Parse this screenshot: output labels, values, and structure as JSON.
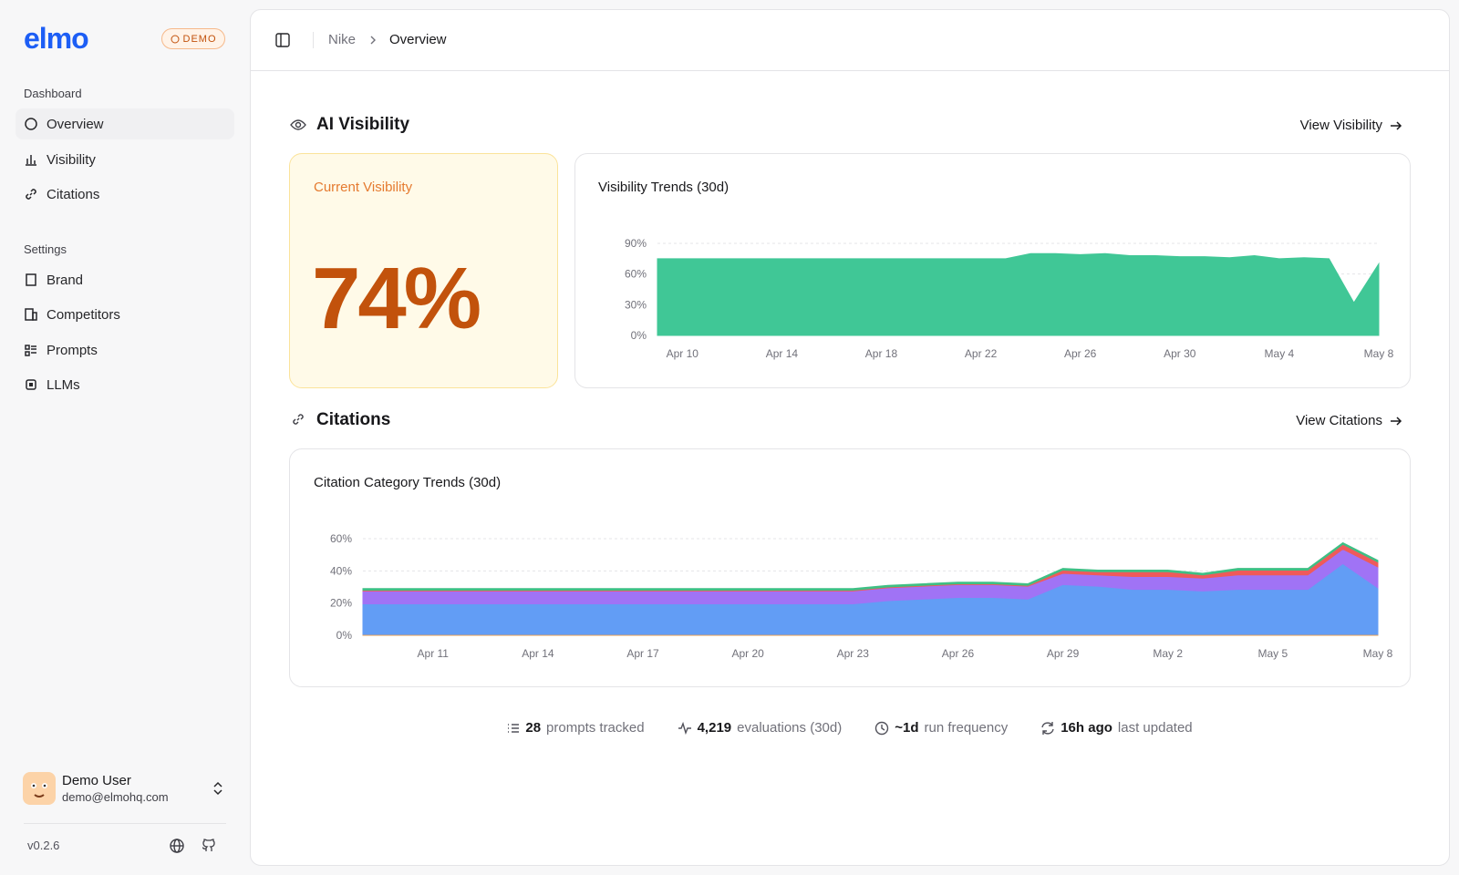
{
  "sidebar": {
    "logo": "elmo",
    "badge": "DEMO",
    "sections": [
      {
        "title": "Dashboard",
        "items": [
          "Overview",
          "Visibility",
          "Citations"
        ]
      },
      {
        "title": "Settings",
        "items": [
          "Brand",
          "Competitors",
          "Prompts",
          "LLMs"
        ]
      }
    ],
    "user": {
      "name": "Demo User",
      "email": "demo@elmohq.com"
    },
    "version": "v0.2.6"
  },
  "breadcrumb": [
    "Nike",
    "Overview"
  ],
  "visibility": {
    "heading": "AI Visibility",
    "link": "View Visibility",
    "current_label": "Current Visibility",
    "current_value": "74%"
  },
  "citations": {
    "heading": "Citations",
    "link": "View Citations"
  },
  "stats": [
    {
      "value": "28",
      "label": "prompts tracked"
    },
    {
      "value": "4,219",
      "label": "evaluations (30d)"
    },
    {
      "value": "~1d",
      "label": "run frequency"
    },
    {
      "value": "16h ago",
      "label": "last updated"
    }
  ],
  "chart_data": [
    {
      "type": "area",
      "title": "Visibility Trends (30d)",
      "categories": [
        null,
        "Apr 10",
        null,
        null,
        null,
        "Apr 14",
        null,
        null,
        null,
        "Apr 18",
        null,
        null,
        null,
        "Apr 22",
        null,
        null,
        null,
        "Apr 26",
        null,
        null,
        null,
        "Apr 30",
        null,
        null,
        null,
        "May 4",
        null,
        null,
        null,
        "May 8"
      ],
      "series": [
        {
          "color": "#40c796",
          "values": [
            75,
            75,
            75,
            75,
            75,
            75,
            75,
            75,
            75,
            75,
            75,
            75,
            75,
            75,
            75,
            80,
            80,
            79,
            80,
            78,
            78,
            77,
            77,
            76,
            78,
            75,
            76,
            75,
            32,
            70
          ]
        }
      ],
      "ylim": [
        0,
        90
      ],
      "yticks": [
        {
          "value": 0,
          "label": "0%"
        },
        {
          "value": 30,
          "label": "30%"
        },
        {
          "value": 60,
          "label": "60%"
        },
        {
          "value": 90,
          "label": "90%"
        }
      ],
      "grid": true
    },
    {
      "type": "stacked-area",
      "title": "Citation Category Trends (30d)",
      "categories": [
        null,
        null,
        "Apr 11",
        null,
        null,
        "Apr 14",
        null,
        null,
        "Apr 17",
        null,
        null,
        "Apr 20",
        null,
        null,
        "Apr 23",
        null,
        null,
        "Apr 26",
        null,
        null,
        "Apr 29",
        null,
        null,
        "May 2",
        null,
        null,
        "May 5",
        null,
        null,
        "May 8"
      ],
      "series": [
        {
          "color": "#f59e42",
          "values": [
            0.5,
            0.5,
            0.5,
            0.5,
            0.5,
            0.5,
            0.5,
            0.5,
            0.5,
            0.5,
            0.5,
            0.5,
            0.5,
            0.5,
            0.5,
            0.5,
            0.5,
            0.5,
            0.5,
            0.5,
            0.5,
            0.5,
            0.5,
            0.5,
            0.5,
            0.5,
            0.5,
            0.5,
            0.5,
            0.5
          ]
        },
        {
          "color": "#629df5",
          "values": [
            19,
            19,
            19,
            19,
            19,
            19,
            19,
            19,
            19,
            19,
            19,
            19,
            19,
            19,
            19,
            21,
            22,
            23,
            23,
            22,
            31,
            30,
            28,
            28,
            27,
            28,
            28,
            28,
            44,
            29
          ]
        },
        {
          "color": "#a073f5",
          "values": [
            8,
            8,
            8,
            8,
            8,
            8,
            8,
            8,
            8,
            8,
            8,
            8,
            8,
            8,
            8,
            8,
            8,
            8,
            8,
            8,
            7,
            7,
            8,
            8,
            8,
            9,
            9,
            9,
            9,
            13
          ]
        },
        {
          "color": "#ef5a5a",
          "values": [
            0.5,
            0.5,
            0.5,
            0.5,
            0.5,
            0.5,
            0.5,
            0.5,
            0.5,
            0.5,
            0.5,
            0.5,
            0.5,
            0.5,
            0.5,
            0.5,
            0.5,
            0.5,
            0.5,
            0.5,
            2,
            2,
            3,
            3,
            2,
            3,
            3,
            3,
            3,
            3
          ]
        },
        {
          "color": "#3fbf84",
          "values": [
            1,
            1,
            1,
            1,
            1,
            1,
            1,
            1,
            1,
            1,
            1,
            1,
            1,
            1,
            1,
            1,
            1,
            1,
            1,
            1,
            1,
            1,
            1,
            1,
            1,
            1,
            1,
            1,
            1,
            1
          ]
        }
      ],
      "ylim": [
        0,
        60
      ],
      "yticks": [
        {
          "value": 0,
          "label": "0%"
        },
        {
          "value": 20,
          "label": "20%"
        },
        {
          "value": 40,
          "label": "40%"
        },
        {
          "value": 60,
          "label": "60%"
        }
      ],
      "grid": true
    }
  ]
}
